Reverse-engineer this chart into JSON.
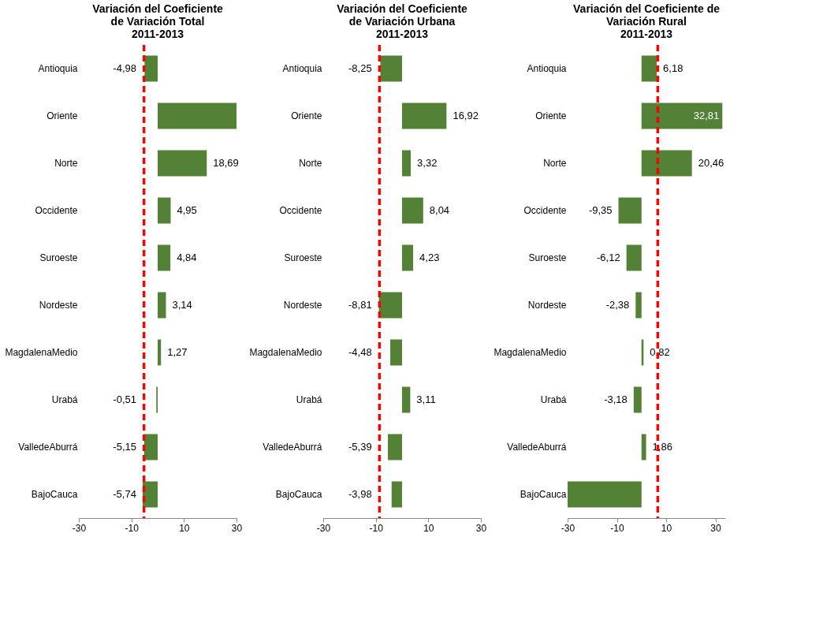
{
  "chart_data": [
    {
      "type": "bar",
      "orientation": "horizontal",
      "title": "Variación del Coeficiente\nde Variación Total\n2011-2013",
      "categories": [
        "Antioquia",
        "Oriente",
        "Norte",
        "Occidente",
        "Suroeste",
        "Nordeste",
        "MagdalenaMedio",
        "Urabá",
        "ValledeAburrá",
        "BajoCauca"
      ],
      "values": [
        -4.98,
        30,
        18.69,
        4.95,
        4.84,
        3.14,
        1.27,
        -0.51,
        -5.15,
        -5.74
      ],
      "value_labels": [
        "-4,98",
        null,
        "18,69",
        "4,95",
        "4,84",
        "3,14",
        "1,27",
        "-0,51",
        "-5,15",
        "-5,74"
      ],
      "color": "#538135",
      "xlim": [
        -30,
        30
      ],
      "xticks": [
        -30,
        -10,
        10,
        30
      ],
      "grid": false,
      "ref_lines": [
        {
          "axis": "x",
          "value": -5.2,
          "color": "#ff0000",
          "line_style": "dashed"
        }
      ]
    },
    {
      "type": "bar",
      "orientation": "horizontal",
      "title": "Variación del Coeficiente\nde Variación Urbana\n2011-2013",
      "categories": [
        "Antioquia",
        "Oriente",
        "Norte",
        "Occidente",
        "Suroeste",
        "Nordeste",
        "MagdalenaMedio",
        "Urabá",
        "ValledeAburrá",
        "BajoCauca"
      ],
      "values": [
        -8.25,
        16.92,
        3.32,
        8.04,
        4.23,
        -8.81,
        -4.48,
        3.11,
        -5.39,
        -3.98
      ],
      "value_labels": [
        "-8,25",
        "16,92",
        "3,32",
        "8,04",
        "4,23",
        "-8,81",
        "-4,48",
        "3,11",
        "-5,39",
        "-3,98"
      ],
      "color": "#538135",
      "xlim": [
        -30,
        30
      ],
      "xticks": [
        -30,
        -10,
        10,
        30
      ],
      "grid": false,
      "ref_lines": [
        {
          "axis": "x",
          "value": -8.6,
          "color": "#ff0000",
          "line_style": "dashed"
        }
      ]
    },
    {
      "type": "bar",
      "orientation": "horizontal",
      "title": "Variación del Coeficiente de\nVariación Rural\n2011-2013",
      "categories": [
        "Antioquia",
        "Oriente",
        "Norte",
        "Occidente",
        "Suroeste",
        "Nordeste",
        "MagdalenaMedio",
        "Urabá",
        "ValledeAburrá",
        "BajoCauca"
      ],
      "values": [
        6.18,
        32.81,
        20.46,
        -9.35,
        -6.12,
        -2.38,
        0.82,
        -3.18,
        1.86,
        -30
      ],
      "value_labels": [
        "6,18",
        "32,81",
        "20,46",
        "-9,35",
        "-6,12",
        "-2,38",
        "0,82",
        "-3,18",
        "1,86",
        null
      ],
      "color": "#538135",
      "xlim": [
        -30,
        34
      ],
      "xticks": [
        -30,
        -10,
        10,
        30
      ],
      "grid": false,
      "ref_lines": [
        {
          "axis": "x",
          "value": 6.6,
          "color": "#ff0000",
          "line_style": "dashed"
        }
      ]
    }
  ]
}
